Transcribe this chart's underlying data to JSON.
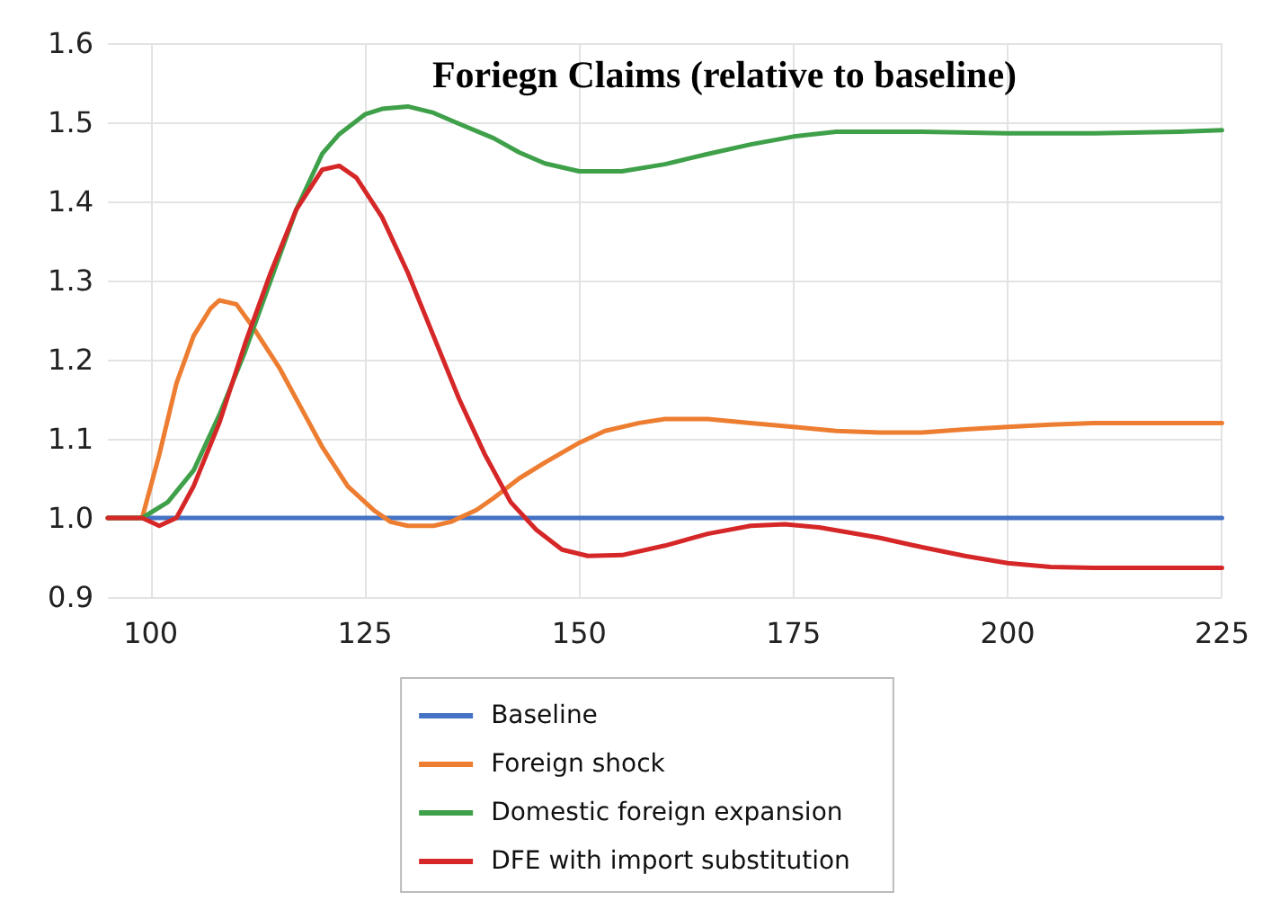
{
  "chart_data": {
    "type": "line",
    "title": "Foriegn Claims (relative to baseline)",
    "xlim": [
      95,
      225
    ],
    "xticks": [
      100,
      125,
      150,
      175,
      200,
      225
    ],
    "ylim": [
      0.9,
      1.6
    ],
    "yticks": [
      0.9,
      {
        "value": 1,
        "label": "1.0"
      },
      1.1,
      1.2,
      1.3,
      1.4,
      1.5,
      1.6
    ],
    "grid": true,
    "legend": "bottom",
    "marker": "none",
    "line_style": "solid",
    "series": [
      {
        "name": "Baseline",
        "color": "#4472c4",
        "x": [
          95,
          225
        ],
        "values": [
          1,
          1
        ]
      },
      {
        "name": "Foreign shock",
        "color": "#ed7d31",
        "x": [
          95,
          99,
          101,
          103,
          105,
          107,
          108,
          110,
          112,
          115,
          118,
          120,
          123,
          126,
          128,
          130,
          133,
          135,
          138,
          140,
          143,
          146,
          150,
          153,
          157,
          160,
          165,
          170,
          175,
          180,
          185,
          190,
          195,
          200,
          205,
          210,
          225
        ],
        "values": [
          1,
          1,
          1.08,
          1.17,
          1.23,
          1.265,
          1.275,
          1.27,
          1.24,
          1.19,
          1.13,
          1.09,
          1.04,
          1.01,
          0.995,
          0.99,
          0.99,
          0.995,
          1.01,
          1.025,
          1.05,
          1.07,
          1.095,
          1.11,
          1.12,
          1.125,
          1.125,
          1.12,
          1.115,
          1.11,
          1.108,
          1.108,
          1.112,
          1.115,
          1.118,
          1.12,
          1.12
        ]
      },
      {
        "name": "Domestic foreign expansion",
        "color": "#3fa04a",
        "x": [
          95,
          99,
          102,
          105,
          108,
          111,
          114,
          117,
          120,
          122,
          125,
          127,
          130,
          133,
          136,
          140,
          143,
          146,
          150,
          155,
          160,
          165,
          170,
          175,
          180,
          190,
          200,
          210,
          220,
          225
        ],
        "values": [
          1,
          1,
          1.02,
          1.06,
          1.13,
          1.21,
          1.3,
          1.39,
          1.46,
          1.485,
          1.51,
          1.517,
          1.52,
          1.512,
          1.498,
          1.48,
          1.462,
          1.448,
          1.438,
          1.438,
          1.447,
          1.46,
          1.472,
          1.482,
          1.488,
          1.488,
          1.486,
          1.486,
          1.488,
          1.49
        ]
      },
      {
        "name": "DFE with import substitution",
        "color": "#d62728",
        "x": [
          95,
          99,
          101,
          103,
          105,
          108,
          111,
          114,
          117,
          120,
          122,
          124,
          127,
          130,
          133,
          136,
          139,
          142,
          145,
          148,
          151,
          155,
          160,
          165,
          170,
          174,
          178,
          185,
          190,
          195,
          200,
          205,
          210,
          225
        ],
        "values": [
          1,
          1,
          0.99,
          1.0,
          1.04,
          1.12,
          1.22,
          1.31,
          1.39,
          1.44,
          1.445,
          1.43,
          1.38,
          1.31,
          1.23,
          1.15,
          1.08,
          1.02,
          0.985,
          0.96,
          0.952,
          0.953,
          0.965,
          0.98,
          0.99,
          0.992,
          0.988,
          0.975,
          0.963,
          0.952,
          0.943,
          0.938,
          0.937,
          0.937
        ]
      }
    ]
  }
}
